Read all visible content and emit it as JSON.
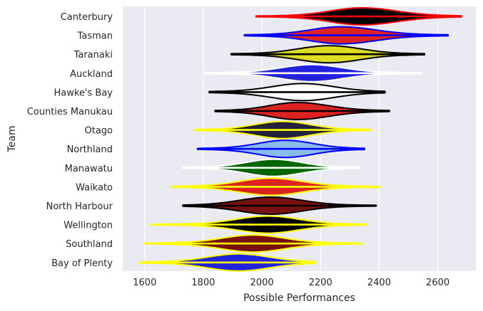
{
  "chart_data": {
    "type": "violin",
    "orientation": "horizontal",
    "xlabel": "Possible Performances",
    "ylabel": "Team",
    "xlim": [
      1525,
      2730
    ],
    "xticks": [
      1600,
      1800,
      2000,
      2200,
      2400,
      2600
    ],
    "grid": true,
    "legend": "none",
    "style": {
      "background": "#eaeaf2",
      "grid_color": "#ffffff"
    },
    "series": [
      {
        "team": "Canterbury",
        "fill": "#000000",
        "line": "#ff0000",
        "min": 1980,
        "max": 2680,
        "median": 2340,
        "iqr_low": 2250,
        "iqr_high": 2440
      },
      {
        "team": "Tasman",
        "fill": "#dd2222",
        "line": "#0000ff",
        "min": 1940,
        "max": 2635,
        "median": 2270,
        "iqr_low": 2180,
        "iqr_high": 2370
      },
      {
        "team": "Taranaki",
        "fill": "#dddd22",
        "line": "#000000",
        "min": 1895,
        "max": 2555,
        "median": 2230,
        "iqr_low": 2140,
        "iqr_high": 2320
      },
      {
        "team": "Auckland",
        "fill": "#2222dd",
        "line": "#ffffff",
        "min": 1805,
        "max": 2545,
        "median": 2170,
        "iqr_low": 2080,
        "iqr_high": 2260
      },
      {
        "team": "Hawke's Bay",
        "fill": "#ffffff",
        "line": "#000000",
        "min": 1820,
        "max": 2420,
        "median": 2140,
        "iqr_low": 2050,
        "iqr_high": 2230
      },
      {
        "team": "Counties Manukau",
        "fill": "#dd2222",
        "line": "#000000",
        "min": 1840,
        "max": 2435,
        "median": 2120,
        "iqr_low": 2040,
        "iqr_high": 2210
      },
      {
        "team": "Otago",
        "fill": "#22223a",
        "line": "#ffff00",
        "min": 1770,
        "max": 2370,
        "median": 2070,
        "iqr_low": 1990,
        "iqr_high": 2150
      },
      {
        "team": "Northland",
        "fill": "#88bbee",
        "line": "#0000ff",
        "min": 1780,
        "max": 2350,
        "median": 2080,
        "iqr_low": 2000,
        "iqr_high": 2160
      },
      {
        "team": "Manawatu",
        "fill": "#006600",
        "line": "#ffffff",
        "min": 1730,
        "max": 2330,
        "median": 2040,
        "iqr_low": 1960,
        "iqr_high": 2120
      },
      {
        "team": "Waikato",
        "fill": "#dd2222",
        "line": "#ffff00",
        "min": 1690,
        "max": 2400,
        "median": 2030,
        "iqr_low": 1940,
        "iqr_high": 2120
      },
      {
        "team": "North Harbour",
        "fill": "#771111",
        "line": "#000000",
        "min": 1730,
        "max": 2390,
        "median": 2030,
        "iqr_low": 1940,
        "iqr_high": 2120
      },
      {
        "team": "Wellington",
        "fill": "#000000",
        "line": "#ffff00",
        "min": 1620,
        "max": 2355,
        "median": 2020,
        "iqr_low": 1930,
        "iqr_high": 2110
      },
      {
        "team": "Southland",
        "fill": "#771111",
        "line": "#ffff00",
        "min": 1600,
        "max": 2340,
        "median": 1970,
        "iqr_low": 1880,
        "iqr_high": 2060
      },
      {
        "team": "Bay of Plenty",
        "fill": "#2222dd",
        "line": "#ffff00",
        "min": 1580,
        "max": 2180,
        "median": 1920,
        "iqr_low": 1830,
        "iqr_high": 2010
      }
    ]
  }
}
